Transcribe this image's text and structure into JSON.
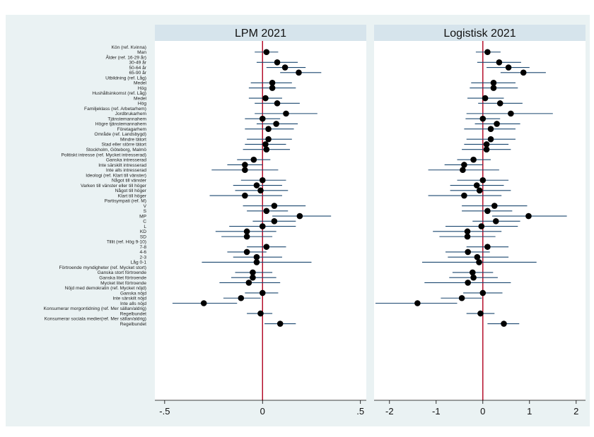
{
  "colors": {
    "outer_background": "#eaf2f3",
    "plot_background": "#ffffff",
    "strip_background": "#d6e4ec",
    "ci_line": "#1a476f",
    "point": "#000000",
    "zero_line": "#b0001e"
  },
  "chart_data": {
    "type": "coefficient-plot",
    "legend": "none",
    "grid": false,
    "row_labels": [
      {
        "text": "Kön (ref. Kvinna)",
        "header": true
      },
      {
        "text": "Man"
      },
      {
        "text": "Ålder (ref. 16-29 år)",
        "header": true
      },
      {
        "text": "30-49 år"
      },
      {
        "text": "50-64 år"
      },
      {
        "text": "65-90 år"
      },
      {
        "text": "Utbildning (ref. Låg)",
        "header": true
      },
      {
        "text": "Medel"
      },
      {
        "text": "Hög"
      },
      {
        "text": "Hushållsinkomst (ref. Låg)",
        "header": true
      },
      {
        "text": "Medel"
      },
      {
        "text": "Hög"
      },
      {
        "text": "Familjeklass (ref. Arbetarhem)",
        "header": true
      },
      {
        "text": "Jordbrukarhem"
      },
      {
        "text": "Tjänstemannahem"
      },
      {
        "text": "Högre tjänstemannahem"
      },
      {
        "text": "Företagarhem"
      },
      {
        "text": "Område (ref. Landsbygd)",
        "header": true
      },
      {
        "text": "Mindre tätort"
      },
      {
        "text": "Stad eller större tätort"
      },
      {
        "text": "Stockholm, Göteborg, Malmö"
      },
      {
        "text": "Politiskt intresse (ref. Mycket intresserad)",
        "header": true
      },
      {
        "text": "Ganska intresserad"
      },
      {
        "text": "Inte särskilt intresserad"
      },
      {
        "text": "Inte alls intresserad"
      },
      {
        "text": "Ideologi (ref. Klart till vänster)",
        "header": true
      },
      {
        "text": "Något till vänster"
      },
      {
        "text": "Varken till vänster eller till höger"
      },
      {
        "text": "Något till höger"
      },
      {
        "text": "Klart till höger"
      },
      {
        "text": "Partisympati (ref. M)",
        "header": true
      },
      {
        "text": "V"
      },
      {
        "text": "S"
      },
      {
        "text": "MP"
      },
      {
        "text": "C"
      },
      {
        "text": "L"
      },
      {
        "text": "KD"
      },
      {
        "text": "SD"
      },
      {
        "text": "Tillit (ref. Hög 9-10)",
        "header": true
      },
      {
        "text": "7-8"
      },
      {
        "text": "4-6"
      },
      {
        "text": "2-3"
      },
      {
        "text": "Låg 0-1"
      },
      {
        "text": "Förtroende myndigheter (ref. Mycket stort)",
        "header": true
      },
      {
        "text": "Ganska stort förtroende"
      },
      {
        "text": "Ganska litet förtroende"
      },
      {
        "text": "Mycket litet förtroende"
      },
      {
        "text": "Nöjd med demokratin (ref. Mycket nöjd)",
        "header": true
      },
      {
        "text": "Ganska nöjd"
      },
      {
        "text": "Inte särskilt nöjd"
      },
      {
        "text": "Inte alls nöjd"
      },
      {
        "text": "Konsumerar morgontidning (ref. Mer sällan/aldrig)",
        "header": true
      },
      {
        "text": "Regelbundet"
      },
      {
        "text": "Konsumerar sociala medier(ref. Mer sällan/aldrig)",
        "header": true
      },
      {
        "text": "Regelbundet"
      }
    ],
    "panels": [
      {
        "title": "LPM 2021",
        "xlim": [
          -0.55,
          0.53
        ],
        "ticks": [
          {
            "value": -0.5,
            "label": "-.5"
          },
          {
            "value": 0,
            "label": "0"
          },
          {
            "value": 0.5,
            "label": ".5"
          }
        ],
        "coefficients": [
          null,
          {
            "est": 0.02,
            "lo": -0.04,
            "hi": 0.08
          },
          null,
          {
            "est": 0.075,
            "lo": -0.03,
            "hi": 0.18
          },
          {
            "est": 0.115,
            "lo": 0.02,
            "hi": 0.22
          },
          {
            "est": 0.185,
            "lo": 0.09,
            "hi": 0.3
          },
          null,
          {
            "est": 0.05,
            "lo": -0.06,
            "hi": 0.15
          },
          {
            "est": 0.05,
            "lo": -0.07,
            "hi": 0.17
          },
          null,
          {
            "est": 0.015,
            "lo": -0.07,
            "hi": 0.1
          },
          {
            "est": 0.075,
            "lo": -0.04,
            "hi": 0.19
          },
          null,
          {
            "est": 0.12,
            "lo": -0.04,
            "hi": 0.28
          },
          {
            "est": 0.0,
            "lo": -0.09,
            "hi": 0.09
          },
          {
            "est": 0.07,
            "lo": -0.03,
            "hi": 0.18
          },
          {
            "est": 0.03,
            "lo": -0.09,
            "hi": 0.16
          },
          null,
          {
            "est": 0.03,
            "lo": -0.08,
            "hi": 0.15
          },
          {
            "est": 0.015,
            "lo": -0.09,
            "hi": 0.12
          },
          {
            "est": 0.02,
            "lo": -0.1,
            "hi": 0.14
          },
          null,
          {
            "est": -0.045,
            "lo": -0.13,
            "hi": 0.04
          },
          {
            "est": -0.09,
            "lo": -0.18,
            "hi": 0.0
          },
          {
            "est": -0.09,
            "lo": -0.26,
            "hi": 0.08
          },
          null,
          {
            "est": 0.0,
            "lo": -0.11,
            "hi": 0.12
          },
          {
            "est": -0.03,
            "lo": -0.15,
            "hi": 0.1
          },
          {
            "est": -0.01,
            "lo": -0.14,
            "hi": 0.13
          },
          {
            "est": -0.09,
            "lo": -0.27,
            "hi": 0.1
          },
          null,
          {
            "est": 0.06,
            "lo": -0.1,
            "hi": 0.22
          },
          {
            "est": 0.02,
            "lo": -0.08,
            "hi": 0.13
          },
          {
            "est": 0.19,
            "lo": 0.05,
            "hi": 0.35
          },
          {
            "est": 0.06,
            "lo": -0.05,
            "hi": 0.17
          },
          {
            "est": 0.0,
            "lo": -0.17,
            "hi": 0.17
          },
          {
            "est": -0.08,
            "lo": -0.24,
            "hi": 0.07
          },
          {
            "est": -0.08,
            "lo": -0.21,
            "hi": 0.05
          },
          null,
          {
            "est": 0.02,
            "lo": -0.08,
            "hi": 0.12
          },
          {
            "est": -0.08,
            "lo": -0.18,
            "hi": 0.02
          },
          {
            "est": -0.03,
            "lo": -0.15,
            "hi": 0.1
          },
          {
            "est": -0.03,
            "lo": -0.31,
            "hi": 0.25
          },
          null,
          {
            "est": -0.05,
            "lo": -0.14,
            "hi": 0.05
          },
          {
            "est": -0.05,
            "lo": -0.16,
            "hi": 0.07
          },
          {
            "est": -0.07,
            "lo": -0.22,
            "hi": 0.09
          },
          null,
          {
            "est": 0.0,
            "lo": -0.09,
            "hi": 0.08
          },
          {
            "est": -0.11,
            "lo": -0.2,
            "hi": -0.01
          },
          {
            "est": -0.3,
            "lo": -0.46,
            "hi": -0.13
          },
          null,
          {
            "est": -0.01,
            "lo": -0.08,
            "hi": 0.05
          },
          null,
          {
            "est": 0.09,
            "lo": 0.01,
            "hi": 0.17
          }
        ]
      },
      {
        "title": "Logistisk 2021",
        "xlim": [
          -2.33,
          2.2
        ],
        "ticks": [
          {
            "value": -2,
            "label": "-2"
          },
          {
            "value": -1,
            "label": "-1"
          },
          {
            "value": 0,
            "label": "0"
          },
          {
            "value": 1,
            "label": "1"
          },
          {
            "value": 2,
            "label": "2"
          }
        ],
        "coefficients": [
          null,
          {
            "est": 0.1,
            "lo": -0.15,
            "hi": 0.38
          },
          null,
          {
            "est": 0.35,
            "lo": -0.12,
            "hi": 0.82
          },
          {
            "est": 0.55,
            "lo": 0.08,
            "hi": 1.0
          },
          {
            "est": 0.87,
            "lo": 0.38,
            "hi": 1.35
          },
          null,
          {
            "est": 0.23,
            "lo": -0.25,
            "hi": 0.7
          },
          {
            "est": 0.23,
            "lo": -0.28,
            "hi": 0.75
          },
          null,
          {
            "est": 0.05,
            "lo": -0.33,
            "hi": 0.45
          },
          {
            "est": 0.37,
            "lo": -0.1,
            "hi": 0.85
          },
          null,
          {
            "est": 0.6,
            "lo": -0.35,
            "hi": 1.5
          },
          {
            "est": 0.0,
            "lo": -0.37,
            "hi": 0.37
          },
          {
            "est": 0.3,
            "lo": -0.17,
            "hi": 0.8
          },
          {
            "est": 0.17,
            "lo": -0.4,
            "hi": 0.7
          },
          null,
          {
            "est": 0.17,
            "lo": -0.35,
            "hi": 0.7
          },
          {
            "est": 0.08,
            "lo": -0.4,
            "hi": 0.55
          },
          {
            "est": 0.08,
            "lo": -0.45,
            "hi": 0.6
          },
          null,
          {
            "est": -0.2,
            "lo": -0.55,
            "hi": 0.17
          },
          {
            "est": -0.4,
            "lo": -0.82,
            "hi": 0.0
          },
          {
            "est": -0.43,
            "lo": -1.17,
            "hi": 0.35
          },
          null,
          {
            "est": 0.0,
            "lo": -0.55,
            "hi": 0.55
          },
          {
            "est": -0.13,
            "lo": -0.7,
            "hi": 0.45
          },
          {
            "est": -0.07,
            "lo": -0.7,
            "hi": 0.6
          },
          {
            "est": -0.4,
            "lo": -1.17,
            "hi": 0.4
          },
          null,
          {
            "est": 0.25,
            "lo": -0.45,
            "hi": 0.95
          },
          {
            "est": 0.1,
            "lo": -0.45,
            "hi": 0.63
          },
          {
            "est": 0.98,
            "lo": 0.2,
            "hi": 1.8
          },
          {
            "est": 0.28,
            "lo": -0.22,
            "hi": 0.8
          },
          {
            "est": -0.03,
            "lo": -0.8,
            "hi": 0.75
          },
          {
            "est": -0.33,
            "lo": -1.07,
            "hi": 0.4
          },
          {
            "est": -0.33,
            "lo": -0.93,
            "hi": 0.27
          },
          null,
          {
            "est": 0.1,
            "lo": -0.35,
            "hi": 0.55
          },
          {
            "est": -0.32,
            "lo": -0.8,
            "hi": 0.15
          },
          {
            "est": -0.12,
            "lo": -0.75,
            "hi": 0.55
          },
          {
            "est": -0.08,
            "lo": -1.3,
            "hi": 1.15
          },
          null,
          {
            "est": -0.22,
            "lo": -0.65,
            "hi": 0.22
          },
          {
            "est": -0.2,
            "lo": -0.72,
            "hi": 0.32
          },
          {
            "est": -0.32,
            "lo": -1.25,
            "hi": 0.6
          },
          null,
          {
            "est": 0.0,
            "lo": -0.42,
            "hi": 0.42
          },
          {
            "est": -0.45,
            "lo": -0.9,
            "hi": -0.02
          },
          {
            "est": -1.4,
            "lo": -2.3,
            "hi": -0.55
          },
          null,
          {
            "est": -0.05,
            "lo": -0.35,
            "hi": 0.25
          },
          null,
          {
            "est": 0.45,
            "lo": 0.1,
            "hi": 0.78
          }
        ]
      }
    ]
  }
}
